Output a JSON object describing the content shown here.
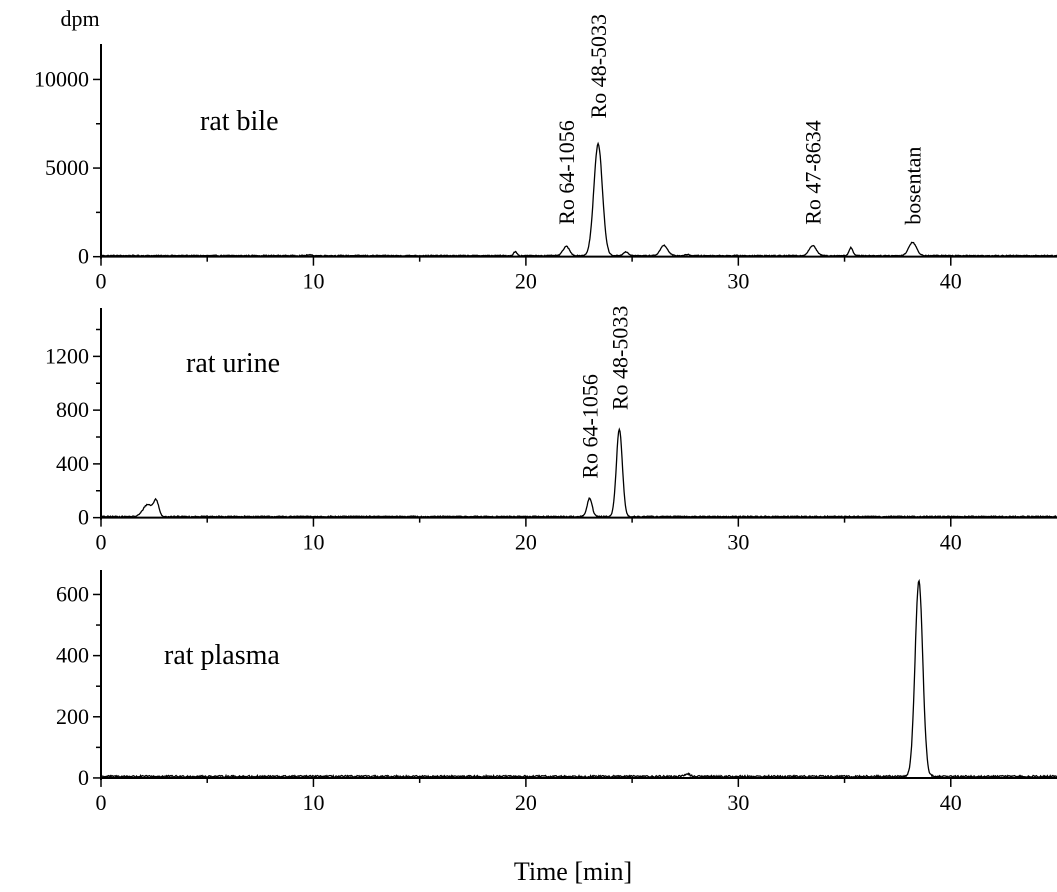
{
  "figure": {
    "ylabel_unit": "dpm",
    "xlabel": "Time [min]"
  },
  "chart_data": [
    {
      "type": "line",
      "title": "rat bile",
      "xlim": [
        0,
        45
      ],
      "ylim": [
        -300,
        12000
      ],
      "x_major_ticks": [
        0,
        10,
        20,
        30,
        40
      ],
      "y_major_ticks": [
        0,
        5000,
        10000
      ],
      "baseline": 60,
      "noise": 25,
      "peaks": [
        {
          "x": 9.8,
          "height": 40,
          "width": 0.12
        },
        {
          "x": 19.5,
          "height": 220,
          "width": 0.08
        },
        {
          "x": 21.9,
          "height": 520,
          "width": 0.15
        },
        {
          "x": 23.4,
          "height": 6300,
          "width": 0.2
        },
        {
          "x": 24.7,
          "height": 200,
          "width": 0.12
        },
        {
          "x": 26.5,
          "height": 580,
          "width": 0.17
        },
        {
          "x": 27.6,
          "height": 60,
          "width": 0.1
        },
        {
          "x": 33.5,
          "height": 560,
          "width": 0.17
        },
        {
          "x": 35.3,
          "height": 450,
          "width": 0.09
        },
        {
          "x": 38.2,
          "height": 750,
          "width": 0.18
        }
      ],
      "annotations": [
        {
          "text": "Ro 64-1056",
          "x": 21.9,
          "y": 1800
        },
        {
          "text": "Ro 48-5033",
          "x": 23.4,
          "y": 7800
        },
        {
          "text": "Ro 47-8634",
          "x": 33.5,
          "y": 1800
        },
        {
          "text": "bosentan",
          "x": 38.2,
          "y": 1800
        }
      ]
    },
    {
      "type": "line",
      "title": "rat urine",
      "xlim": [
        0,
        45
      ],
      "ylim": [
        -25,
        1560
      ],
      "x_major_ticks": [
        0,
        10,
        20,
        30,
        40
      ],
      "y_major_ticks": [
        0,
        400,
        800,
        1200
      ],
      "baseline": 8,
      "noise": 4,
      "peaks": [
        {
          "x": 2.2,
          "height": 90,
          "width": 0.22
        },
        {
          "x": 2.6,
          "height": 110,
          "width": 0.12
        },
        {
          "x": 23.0,
          "height": 135,
          "width": 0.12
        },
        {
          "x": 24.4,
          "height": 650,
          "width": 0.14
        }
      ],
      "annotations": [
        {
          "text": "Ro 64-1056",
          "x": 23.0,
          "y": 290
        },
        {
          "text": "Ro 48-5033",
          "x": 24.4,
          "y": 800
        }
      ]
    },
    {
      "type": "line",
      "title": "rat plasma",
      "xlim": [
        0,
        45
      ],
      "ylim": [
        -10,
        680
      ],
      "x_major_ticks": [
        0,
        10,
        20,
        30,
        40
      ],
      "y_major_ticks": [
        0,
        200,
        400,
        600
      ],
      "baseline": 5,
      "noise": 3,
      "peaks": [
        {
          "x": 27.6,
          "height": 10,
          "width": 0.1
        },
        {
          "x": 38.5,
          "height": 640,
          "width": 0.18
        }
      ],
      "annotations": []
    }
  ]
}
